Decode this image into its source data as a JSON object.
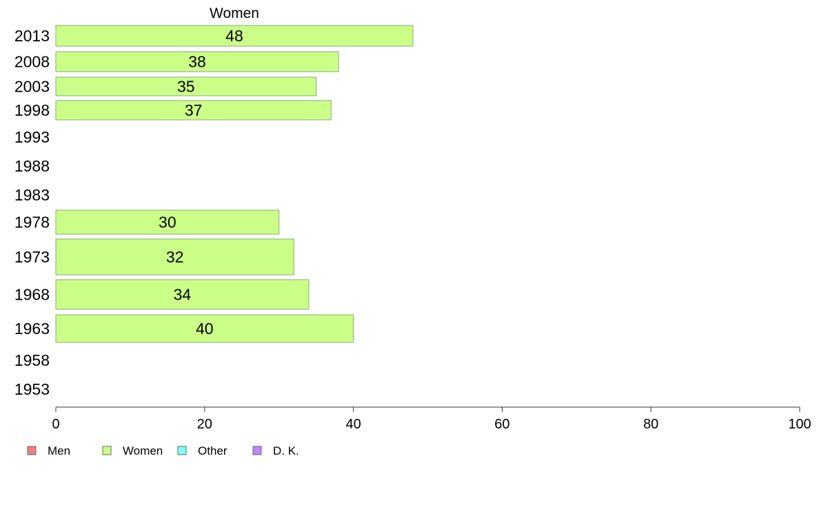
{
  "chart_data": {
    "type": "bar",
    "orientation": "horizontal",
    "title": "Women",
    "categories": [
      "2013",
      "2008",
      "2003",
      "1998",
      "1993",
      "1988",
      "1983",
      "1978",
      "1973",
      "1968",
      "1963",
      "1958",
      "1953"
    ],
    "series": [
      {
        "name": "Women",
        "color": "#ccff88",
        "values": [
          48,
          38,
          35,
          37,
          null,
          null,
          null,
          30,
          32,
          34,
          40,
          null,
          null
        ]
      }
    ],
    "xlim": [
      0,
      100
    ],
    "xticks": [
      0,
      20,
      40,
      60,
      80,
      100
    ],
    "legend": {
      "placement": "bottom-left",
      "entries": [
        {
          "label": "Men",
          "color": "#f08080"
        },
        {
          "label": "Women",
          "color": "#ccff88"
        },
        {
          "label": "Other",
          "color": "#80ffff"
        },
        {
          "label": "D. K.",
          "color": "#bb88ff"
        }
      ]
    },
    "grid": false
  }
}
